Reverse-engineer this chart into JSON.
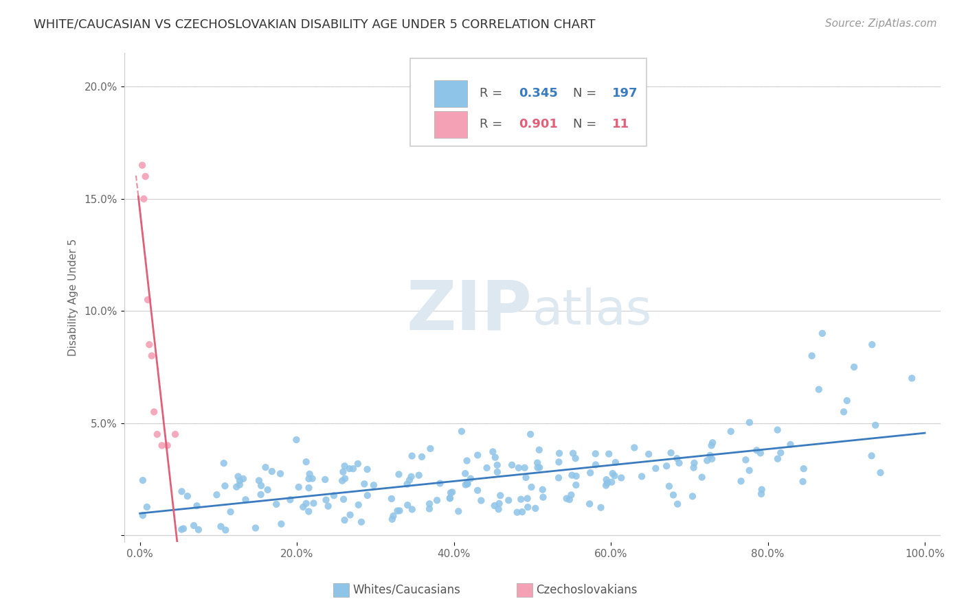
{
  "title": "WHITE/CAUCASIAN VS CZECHOSLOVAKIAN DISABILITY AGE UNDER 5 CORRELATION CHART",
  "source": "Source: ZipAtlas.com",
  "ylabel": "Disability Age Under 5",
  "blue_color": "#8ec4e8",
  "pink_color": "#f4a0b5",
  "blue_line_color": "#3a7bbf",
  "pink_line_color": "#e0607a",
  "legend_blue_label": "Whites/Caucasians",
  "legend_pink_label": "Czechoslovakians",
  "R_blue": 0.345,
  "N_blue": 197,
  "R_pink": 0.901,
  "N_pink": 11,
  "watermark_zip": "ZIP",
  "watermark_atlas": "atlas",
  "title_fontsize": 13,
  "source_fontsize": 11,
  "axis_fontsize": 11,
  "tick_fontsize": 11,
  "legend_fontsize": 13
}
